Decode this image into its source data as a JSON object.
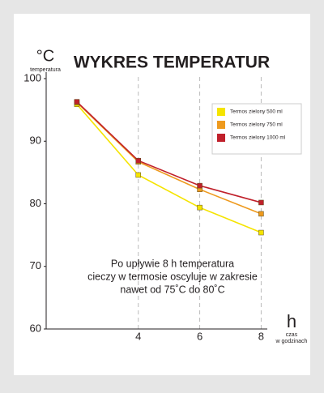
{
  "chart_data": {
    "type": "line",
    "title": "WYKRES TEMPERATUR",
    "y_label": "°C",
    "y_sublabel": "temperatura",
    "x_label": "h",
    "x_sublabel": [
      "czas",
      "w godzinach"
    ],
    "annotation": [
      "Po upływie 8 h temperatura",
      "cieczy w termosie oscyluje w zakresie",
      "nawet od 75˚C do 80˚C"
    ],
    "x": [
      2,
      4,
      6,
      8
    ],
    "series": [
      {
        "name": "Termos zielony 500 ml",
        "color": "#f5e400",
        "values": [
          95.9,
          84.6,
          79.4,
          75.4
        ]
      },
      {
        "name": "Termos zielony 750 ml",
        "color": "#ee9a1e",
        "values": [
          96.2,
          86.7,
          82.3,
          78.4
        ]
      },
      {
        "name": "Termos zielony 1000 ml",
        "color": "#c0202b",
        "values": [
          96.3,
          86.9,
          82.9,
          80.2
        ]
      }
    ],
    "xlim": [
      1,
      8.2
    ],
    "ylim": [
      60,
      100
    ],
    "xticks": [
      4,
      6,
      8
    ],
    "yticks": [
      60,
      70,
      80,
      90,
      100
    ],
    "grid": true,
    "legend": "upper right"
  }
}
